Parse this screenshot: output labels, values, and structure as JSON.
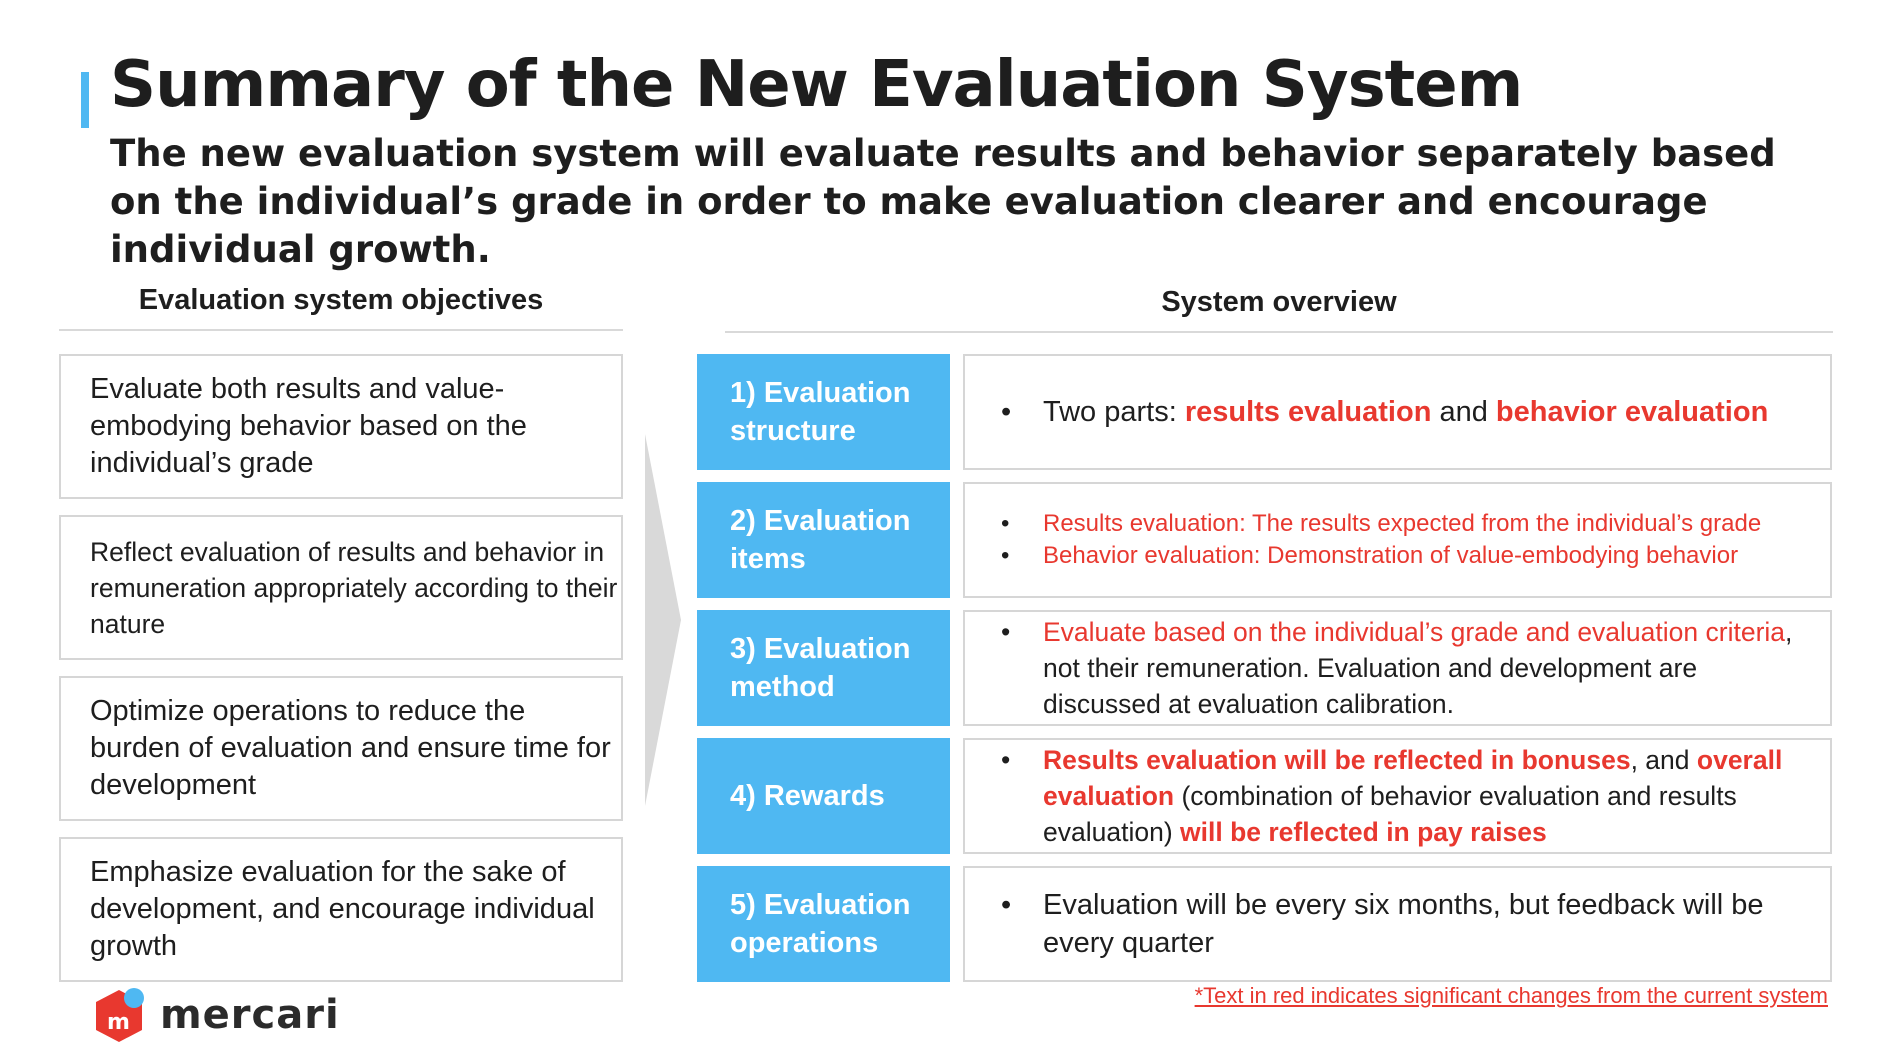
{
  "header": {
    "title": "Summary of the New Evaluation System",
    "subtitle": "The new evaluation system will evaluate results and behavior separately based on the individual’s grade in order to make evaluation clearer and encourage individual growth."
  },
  "objectives": {
    "heading": "Evaluation system objectives",
    "items": [
      "Evaluate both results and value-embodying behavior based on the individual’s grade",
      "Reflect evaluation of results and behavior in remuneration appropriately according to their nature",
      "Optimize operations to reduce the burden of evaluation and ensure time for development",
      "Emphasize evaluation for the sake of development, and encourage individual growth"
    ]
  },
  "overview": {
    "heading": "System overview",
    "rows": [
      {
        "label": "1) Evaluation structure",
        "bullets": [
          [
            {
              "text": "Two parts: ",
              "style": "plain"
            },
            {
              "text": "results evaluation",
              "style": "redb"
            },
            {
              "text": " and ",
              "style": "plain"
            },
            {
              "text": "behavior evaluation",
              "style": "redb"
            }
          ]
        ]
      },
      {
        "label": "2) Evaluation items",
        "bullets": [
          [
            {
              "text": "Results evaluation: The results expected from the individual’s grade",
              "style": "red"
            }
          ],
          [
            {
              "text": "Behavior evaluation: Demonstration of value-embodying behavior",
              "style": "red"
            }
          ]
        ]
      },
      {
        "label": "3) Evaluation method",
        "bullets": [
          [
            {
              "text": "Evaluate based on the individual’s grade and evaluation criteria",
              "style": "red"
            },
            {
              "text": ", not their remuneration. Evaluation and development are discussed at evaluation calibration.",
              "style": "plain"
            }
          ]
        ]
      },
      {
        "label": "4) Rewards",
        "bullets": [
          [
            {
              "text": "Results evaluation will be reflected in bonuses",
              "style": "redb"
            },
            {
              "text": ", and ",
              "style": "plain"
            },
            {
              "text": "overall evaluation",
              "style": "redb"
            },
            {
              "text": " (combination of behavior evaluation and results evaluation) ",
              "style": "plain"
            },
            {
              "text": "will be reflected in pay raises",
              "style": "redb"
            }
          ]
        ]
      },
      {
        "label": "5) Evaluation operations",
        "bullets": [
          [
            {
              "text": "Evaluation will be every six months, but feedback will be every quarter",
              "style": "plain"
            }
          ]
        ]
      }
    ]
  },
  "footnote": "*Text in red indicates significant changes from the current system",
  "logo": {
    "word": "mercari",
    "icon": "mercari-logo-icon"
  },
  "colors": {
    "accent": "#4fb8f2",
    "red": "#e8382f",
    "border": "#d6d6d6",
    "logo_red": "#e8382f"
  }
}
